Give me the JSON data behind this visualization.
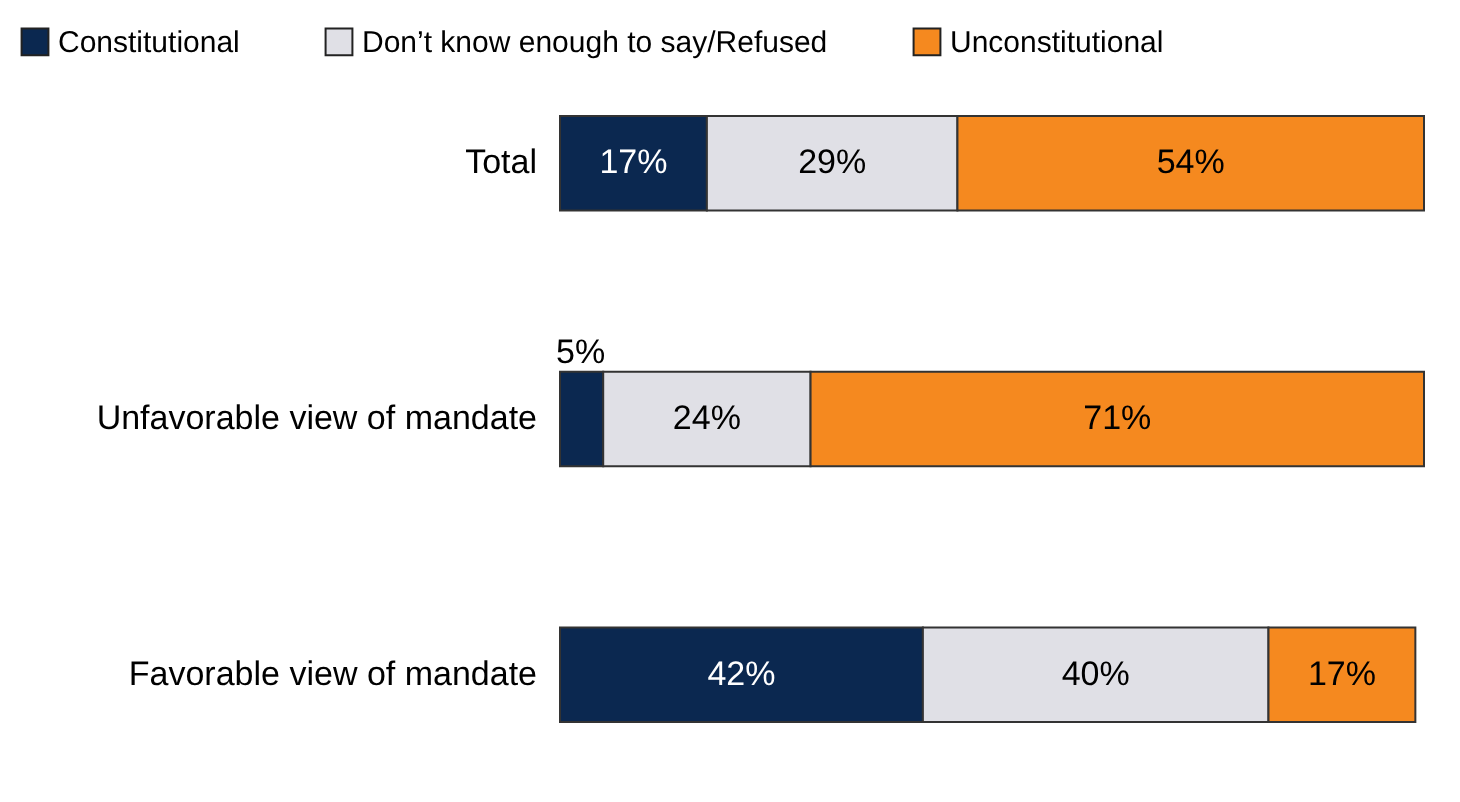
{
  "chart_data": {
    "type": "bar",
    "orientation": "horizontal",
    "stacked": true,
    "legend": "top",
    "categories": [
      "Total",
      "Unfavorable view of mandate",
      "Favorable view of mandate"
    ],
    "series": [
      {
        "name": "Constitutional",
        "color": "#0b2850",
        "values": [
          17,
          5,
          42
        ],
        "value_labels": [
          "17%",
          "5%",
          "42%"
        ]
      },
      {
        "name": "Don’t know enough to say/Refused",
        "color": "#e0e0e6",
        "values": [
          29,
          24,
          40
        ],
        "value_labels": [
          "29%",
          "24%",
          "40%"
        ]
      },
      {
        "name": "Unconstitutional",
        "color": "#f5891f",
        "values": [
          54,
          71,
          17
        ],
        "value_labels": [
          "54%",
          "71%",
          "17%"
        ]
      }
    ]
  }
}
